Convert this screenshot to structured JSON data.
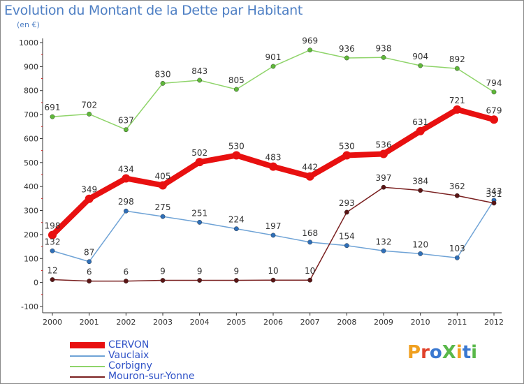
{
  "title": "Evolution du Montant de la Dette par Habitant",
  "subtitle": "(en €)",
  "logo": {
    "text": "ProXiti",
    "colors": [
      "#f0a020",
      "#e0402a",
      "#3a78d0",
      "#59b84a",
      "#f0a020",
      "#3a78d0",
      "#59b84a"
    ]
  },
  "chart_data": {
    "type": "line",
    "x": [
      "2000",
      "2001",
      "2002",
      "2003",
      "2004",
      "2005",
      "2006",
      "2007",
      "2008",
      "2009",
      "2010",
      "2011",
      "2012"
    ],
    "ylim": [
      -100,
      1000
    ],
    "yticks": [
      "-100",
      "0",
      "100",
      "200",
      "300",
      "400",
      "500",
      "600",
      "700",
      "800",
      "900",
      "1000"
    ],
    "grid": false,
    "legend_position": "bottom-left",
    "series": [
      {
        "name": "CERVON",
        "color": "#e81010",
        "width": 8,
        "values": [
          198,
          349,
          434,
          405,
          502,
          530,
          483,
          442,
          530,
          536,
          631,
          721,
          679
        ]
      },
      {
        "name": "Vauclaix",
        "color": "#6fa3d6",
        "width": 1.5,
        "values": [
          132,
          87,
          298,
          275,
          251,
          224,
          197,
          168,
          154,
          132,
          120,
          103,
          343
        ]
      },
      {
        "name": "Corbigny",
        "color": "#8fd46a",
        "width": 1.5,
        "values": [
          691,
          702,
          637,
          830,
          843,
          805,
          901,
          969,
          936,
          938,
          904,
          892,
          794
        ]
      },
      {
        "name": "Mouron-sur-Yonne",
        "color": "#7a2020",
        "width": 1.5,
        "values": [
          12,
          6,
          6,
          9,
          9,
          9,
          10,
          10,
          293,
          397,
          384,
          362,
          331
        ]
      }
    ]
  }
}
